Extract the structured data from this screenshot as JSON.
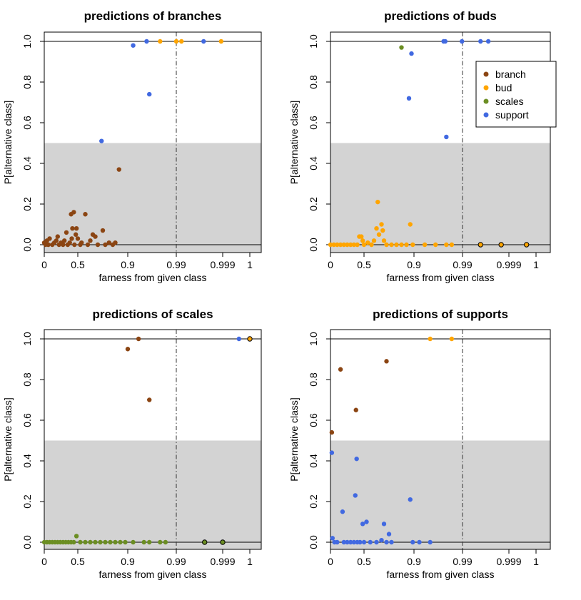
{
  "colors": {
    "branch": "#8B4513",
    "bud": "#FFA500",
    "scales": "#6B8E23",
    "support": "#4169E1",
    "shade": "#D3D3D3",
    "axis": "#000000"
  },
  "legend": {
    "placement": "top-right of panel 2",
    "entries": [
      {
        "label": "branch",
        "color": "#8B4513"
      },
      {
        "label": "bud",
        "color": "#FFA500"
      },
      {
        "label": "scales",
        "color": "#6B8E23"
      },
      {
        "label": "support",
        "color": "#4169E1"
      }
    ]
  },
  "chart_data": [
    {
      "type": "scatter",
      "title": "predictions of branches",
      "xlabel": "farness from given class",
      "ylabel": "P[alternative class]",
      "xticks": [
        "0",
        "0.5",
        "0.9",
        "0.99",
        "0.999",
        "1"
      ],
      "yticks": [
        "0.0",
        "0.2",
        "0.4",
        "0.6",
        "0.8",
        "1.0"
      ],
      "ylim": [
        0,
        1
      ],
      "shaded_band": [
        0,
        0.5
      ],
      "hlines": [
        0,
        1
      ],
      "vline": "0.99",
      "points": [
        {
          "x": 0.0,
          "y": 0.01,
          "c": "branch"
        },
        {
          "x": 0.02,
          "y": 0.0,
          "c": "branch"
        },
        {
          "x": 0.04,
          "y": 0.02,
          "c": "branch"
        },
        {
          "x": 0.06,
          "y": 0.0,
          "c": "branch"
        },
        {
          "x": 0.08,
          "y": 0.03,
          "c": "branch"
        },
        {
          "x": 0.12,
          "y": 0.0,
          "c": "branch"
        },
        {
          "x": 0.15,
          "y": 0.01,
          "c": "branch"
        },
        {
          "x": 0.18,
          "y": 0.02,
          "c": "branch"
        },
        {
          "x": 0.2,
          "y": 0.04,
          "c": "branch"
        },
        {
          "x": 0.22,
          "y": 0.0,
          "c": "branch"
        },
        {
          "x": 0.25,
          "y": 0.01,
          "c": "branch"
        },
        {
          "x": 0.28,
          "y": 0.0,
          "c": "branch"
        },
        {
          "x": 0.3,
          "y": 0.02,
          "c": "branch"
        },
        {
          "x": 0.33,
          "y": 0.06,
          "c": "branch"
        },
        {
          "x": 0.35,
          "y": 0.0,
          "c": "branch"
        },
        {
          "x": 0.38,
          "y": 0.01,
          "c": "branch"
        },
        {
          "x": 0.4,
          "y": 0.15,
          "c": "branch"
        },
        {
          "x": 0.41,
          "y": 0.03,
          "c": "branch"
        },
        {
          "x": 0.42,
          "y": 0.08,
          "c": "branch"
        },
        {
          "x": 0.44,
          "y": 0.16,
          "c": "branch"
        },
        {
          "x": 0.45,
          "y": 0.0,
          "c": "branch"
        },
        {
          "x": 0.47,
          "y": 0.05,
          "c": "branch"
        },
        {
          "x": 0.48,
          "y": 0.08,
          "c": "branch"
        },
        {
          "x": 0.5,
          "y": 0.03,
          "c": "branch"
        },
        {
          "x": 0.52,
          "y": 0.0,
          "c": "branch"
        },
        {
          "x": 0.53,
          "y": 0.01,
          "c": "branch"
        },
        {
          "x": 0.56,
          "y": 0.15,
          "c": "branch"
        },
        {
          "x": 0.58,
          "y": 0.0,
          "c": "branch"
        },
        {
          "x": 0.6,
          "y": 0.02,
          "c": "branch"
        },
        {
          "x": 0.62,
          "y": 0.05,
          "c": "branch"
        },
        {
          "x": 0.64,
          "y": 0.04,
          "c": "branch"
        },
        {
          "x": 0.66,
          "y": 0.0,
          "c": "branch"
        },
        {
          "x": 0.7,
          "y": 0.07,
          "c": "branch"
        },
        {
          "x": 0.72,
          "y": 0.0,
          "c": "branch"
        },
        {
          "x": 0.75,
          "y": 0.01,
          "c": "branch"
        },
        {
          "x": 0.78,
          "y": 0.0,
          "c": "branch"
        },
        {
          "x": 0.8,
          "y": 0.01,
          "c": "branch"
        },
        {
          "x": 0.83,
          "y": 0.37,
          "c": "branch"
        },
        {
          "x": 0.69,
          "y": 0.51,
          "c": "support"
        },
        {
          "x": 0.91,
          "y": 0.98,
          "c": "support"
        },
        {
          "x": 0.935,
          "y": 1.0,
          "c": "support"
        },
        {
          "x": 0.94,
          "y": 0.74,
          "c": "support"
        },
        {
          "x": 0.9953,
          "y": 1.0,
          "c": "support"
        },
        {
          "x": 0.96,
          "y": 1.0,
          "c": "bud"
        },
        {
          "x": 0.99,
          "y": 1.0,
          "c": "bud"
        },
        {
          "x": 0.991,
          "y": 1.0,
          "c": "bud"
        },
        {
          "x": 0.9987,
          "y": 1.0,
          "c": "bud"
        }
      ]
    },
    {
      "type": "scatter",
      "title": "predictions of buds",
      "xlabel": "farness from given class",
      "ylabel": "P[alternative class]",
      "xticks": [
        "0",
        "0.5",
        "0.9",
        "0.99",
        "0.999",
        "1"
      ],
      "yticks": [
        "0.0",
        "0.2",
        "0.4",
        "0.6",
        "0.8",
        "1.0"
      ],
      "ylim": [
        0,
        1
      ],
      "shaded_band": [
        0,
        0.5
      ],
      "hlines": [
        0,
        1
      ],
      "vline": "0.99",
      "points": [
        {
          "x": 0.0,
          "y": 0.0,
          "c": "bud"
        },
        {
          "x": 0.05,
          "y": 0.0,
          "c": "bud"
        },
        {
          "x": 0.1,
          "y": 0.0,
          "c": "bud"
        },
        {
          "x": 0.15,
          "y": 0.0,
          "c": "bud"
        },
        {
          "x": 0.2,
          "y": 0.0,
          "c": "bud"
        },
        {
          "x": 0.25,
          "y": 0.0,
          "c": "bud"
        },
        {
          "x": 0.3,
          "y": 0.0,
          "c": "bud"
        },
        {
          "x": 0.35,
          "y": 0.0,
          "c": "bud"
        },
        {
          "x": 0.4,
          "y": 0.0,
          "c": "bud"
        },
        {
          "x": 0.43,
          "y": 0.04,
          "c": "bud"
        },
        {
          "x": 0.46,
          "y": 0.04,
          "c": "bud"
        },
        {
          "x": 0.48,
          "y": 0.02,
          "c": "bud"
        },
        {
          "x": 0.5,
          "y": 0.0,
          "c": "bud"
        },
        {
          "x": 0.53,
          "y": 0.01,
          "c": "bud"
        },
        {
          "x": 0.56,
          "y": 0.0,
          "c": "bud"
        },
        {
          "x": 0.58,
          "y": 0.02,
          "c": "bud"
        },
        {
          "x": 0.6,
          "y": 0.08,
          "c": "bud"
        },
        {
          "x": 0.61,
          "y": 0.21,
          "c": "bud"
        },
        {
          "x": 0.62,
          "y": 0.05,
          "c": "bud"
        },
        {
          "x": 0.64,
          "y": 0.1,
          "c": "bud"
        },
        {
          "x": 0.65,
          "y": 0.07,
          "c": "bud"
        },
        {
          "x": 0.66,
          "y": 0.02,
          "c": "bud"
        },
        {
          "x": 0.68,
          "y": 0.0,
          "c": "bud"
        },
        {
          "x": 0.72,
          "y": 0.0,
          "c": "bud"
        },
        {
          "x": 0.76,
          "y": 0.0,
          "c": "bud"
        },
        {
          "x": 0.8,
          "y": 0.0,
          "c": "bud"
        },
        {
          "x": 0.84,
          "y": 0.0,
          "c": "bud"
        },
        {
          "x": 0.87,
          "y": 0.1,
          "c": "bud"
        },
        {
          "x": 0.89,
          "y": 0.0,
          "c": "bud"
        },
        {
          "x": 0.92,
          "y": 0.0,
          "c": "bud"
        },
        {
          "x": 0.94,
          "y": 0.0,
          "c": "bud"
        },
        {
          "x": 0.96,
          "y": 0.0,
          "c": "bud"
        },
        {
          "x": 0.97,
          "y": 0.0,
          "c": "bud"
        },
        {
          "x": 0.9935,
          "y": 0.0,
          "c": "bud",
          "outlined": true
        },
        {
          "x": 0.9975,
          "y": 0.0,
          "c": "bud",
          "outlined": true
        },
        {
          "x": 0.99965,
          "y": 0.0,
          "c": "bud",
          "outlined": true
        },
        {
          "x": 0.8,
          "y": 0.97,
          "c": "scales"
        },
        {
          "x": 0.86,
          "y": 0.72,
          "c": "support"
        },
        {
          "x": 0.88,
          "y": 0.94,
          "c": "support"
        },
        {
          "x": 0.955,
          "y": 1.0,
          "c": "support"
        },
        {
          "x": 0.958,
          "y": 1.0,
          "c": "support"
        },
        {
          "x": 0.96,
          "y": 0.53,
          "c": "support"
        },
        {
          "x": 0.989,
          "y": 1.0,
          "c": "support"
        },
        {
          "x": 0.9935,
          "y": 1.0,
          "c": "support"
        },
        {
          "x": 0.995,
          "y": 1.0,
          "c": "support"
        }
      ]
    },
    {
      "type": "scatter",
      "title": "predictions of scales",
      "xlabel": "farness from given class",
      "ylabel": "P[alternative class]",
      "xticks": [
        "0",
        "0.5",
        "0.9",
        "0.99",
        "0.999",
        "1"
      ],
      "yticks": [
        "0.0",
        "0.2",
        "0.4",
        "0.6",
        "0.8",
        "1.0"
      ],
      "ylim": [
        0,
        1
      ],
      "shaded_band": [
        0,
        0.5
      ],
      "hlines": [
        0,
        1
      ],
      "vline": "0.99",
      "points": [
        {
          "x": 0.0,
          "y": 0.0,
          "c": "scales"
        },
        {
          "x": 0.04,
          "y": 0.0,
          "c": "scales"
        },
        {
          "x": 0.08,
          "y": 0.0,
          "c": "scales"
        },
        {
          "x": 0.12,
          "y": 0.0,
          "c": "scales"
        },
        {
          "x": 0.16,
          "y": 0.0,
          "c": "scales"
        },
        {
          "x": 0.2,
          "y": 0.0,
          "c": "scales"
        },
        {
          "x": 0.24,
          "y": 0.0,
          "c": "scales"
        },
        {
          "x": 0.28,
          "y": 0.0,
          "c": "scales"
        },
        {
          "x": 0.32,
          "y": 0.0,
          "c": "scales"
        },
        {
          "x": 0.36,
          "y": 0.0,
          "c": "scales"
        },
        {
          "x": 0.4,
          "y": 0.0,
          "c": "scales"
        },
        {
          "x": 0.44,
          "y": 0.0,
          "c": "scales"
        },
        {
          "x": 0.48,
          "y": 0.03,
          "c": "scales"
        },
        {
          "x": 0.52,
          "y": 0.0,
          "c": "scales"
        },
        {
          "x": 0.56,
          "y": 0.0,
          "c": "scales"
        },
        {
          "x": 0.6,
          "y": 0.0,
          "c": "scales"
        },
        {
          "x": 0.64,
          "y": 0.0,
          "c": "scales"
        },
        {
          "x": 0.68,
          "y": 0.0,
          "c": "scales"
        },
        {
          "x": 0.72,
          "y": 0.0,
          "c": "scales"
        },
        {
          "x": 0.76,
          "y": 0.0,
          "c": "scales"
        },
        {
          "x": 0.8,
          "y": 0.0,
          "c": "scales"
        },
        {
          "x": 0.84,
          "y": 0.0,
          "c": "scales"
        },
        {
          "x": 0.88,
          "y": 0.0,
          "c": "scales"
        },
        {
          "x": 0.91,
          "y": 0.0,
          "c": "scales"
        },
        {
          "x": 0.93,
          "y": 0.0,
          "c": "scales"
        },
        {
          "x": 0.94,
          "y": 0.0,
          "c": "scales"
        },
        {
          "x": 0.96,
          "y": 0.0,
          "c": "scales"
        },
        {
          "x": 0.97,
          "y": 0.0,
          "c": "scales"
        },
        {
          "x": 0.9955,
          "y": 0.0,
          "c": "scales",
          "outlined": true
        },
        {
          "x": 0.999,
          "y": 0.0,
          "c": "scales",
          "outlined": true
        },
        {
          "x": 0.9,
          "y": 0.95,
          "c": "branch"
        },
        {
          "x": 0.92,
          "y": 1.0,
          "c": "branch"
        },
        {
          "x": 0.94,
          "y": 0.7,
          "c": "branch"
        },
        {
          "x": 0.9996,
          "y": 1.0,
          "c": "support"
        },
        {
          "x": 1.0,
          "y": 1.0,
          "c": "bud",
          "outlined": true
        }
      ]
    },
    {
      "type": "scatter",
      "title": "predictions of supports",
      "xlabel": "farness from given class",
      "ylabel": "P[alternative class]",
      "xticks": [
        "0",
        "0.5",
        "0.9",
        "0.99",
        "0.999",
        "1"
      ],
      "yticks": [
        "0.0",
        "0.2",
        "0.4",
        "0.6",
        "0.8",
        "1.0"
      ],
      "ylim": [
        0,
        1
      ],
      "shaded_band": [
        0,
        0.5
      ],
      "hlines": [
        0,
        1
      ],
      "vline": "0.99",
      "points": [
        {
          "x": 0.02,
          "y": 0.44,
          "c": "support"
        },
        {
          "x": 0.03,
          "y": 0.02,
          "c": "support"
        },
        {
          "x": 0.06,
          "y": 0.0,
          "c": "support"
        },
        {
          "x": 0.1,
          "y": 0.0,
          "c": "support"
        },
        {
          "x": 0.18,
          "y": 0.15,
          "c": "support"
        },
        {
          "x": 0.2,
          "y": 0.0,
          "c": "support"
        },
        {
          "x": 0.25,
          "y": 0.0,
          "c": "support"
        },
        {
          "x": 0.3,
          "y": 0.0,
          "c": "support"
        },
        {
          "x": 0.35,
          "y": 0.0,
          "c": "support"
        },
        {
          "x": 0.37,
          "y": 0.23,
          "c": "support"
        },
        {
          "x": 0.39,
          "y": 0.41,
          "c": "support"
        },
        {
          "x": 0.4,
          "y": 0.0,
          "c": "support"
        },
        {
          "x": 0.44,
          "y": 0.0,
          "c": "support"
        },
        {
          "x": 0.48,
          "y": 0.09,
          "c": "support"
        },
        {
          "x": 0.5,
          "y": 0.0,
          "c": "support"
        },
        {
          "x": 0.52,
          "y": 0.1,
          "c": "support"
        },
        {
          "x": 0.55,
          "y": 0.0,
          "c": "support"
        },
        {
          "x": 0.6,
          "y": 0.0,
          "c": "support"
        },
        {
          "x": 0.64,
          "y": 0.01,
          "c": "support"
        },
        {
          "x": 0.66,
          "y": 0.09,
          "c": "support"
        },
        {
          "x": 0.68,
          "y": 0.0,
          "c": "support"
        },
        {
          "x": 0.7,
          "y": 0.04,
          "c": "support"
        },
        {
          "x": 0.72,
          "y": 0.0,
          "c": "support"
        },
        {
          "x": 0.87,
          "y": 0.21,
          "c": "support"
        },
        {
          "x": 0.89,
          "y": 0.0,
          "c": "support"
        },
        {
          "x": 0.91,
          "y": 0.0,
          "c": "support"
        },
        {
          "x": 0.93,
          "y": 0.0,
          "c": "support"
        },
        {
          "x": 0.02,
          "y": 0.54,
          "c": "branch"
        },
        {
          "x": 0.15,
          "y": 0.85,
          "c": "branch"
        },
        {
          "x": 0.38,
          "y": 0.65,
          "c": "branch"
        },
        {
          "x": 0.68,
          "y": 0.89,
          "c": "branch"
        },
        {
          "x": 0.93,
          "y": 1.0,
          "c": "bud"
        },
        {
          "x": 0.97,
          "y": 1.0,
          "c": "bud"
        }
      ]
    }
  ]
}
